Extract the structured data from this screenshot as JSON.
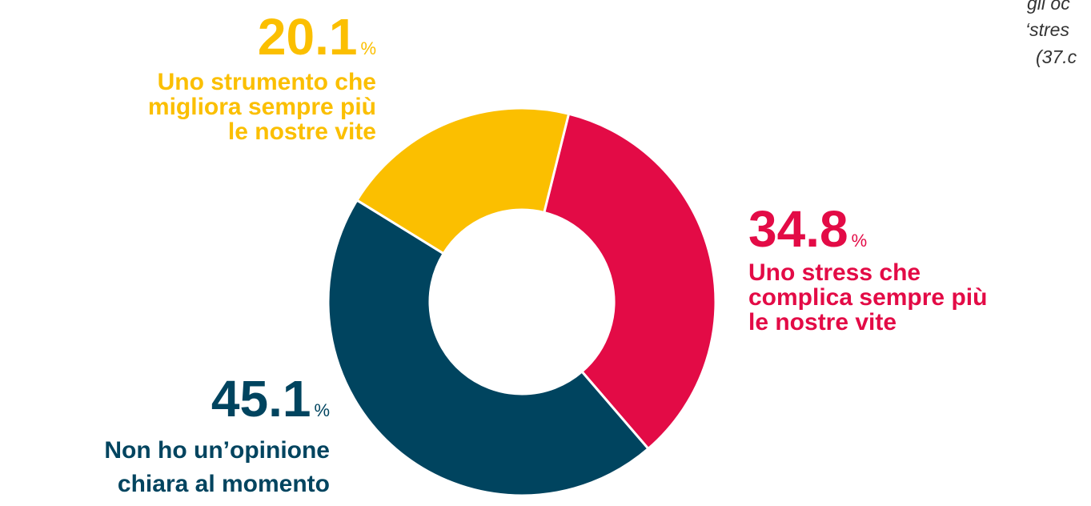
{
  "chart_data": {
    "type": "donut",
    "categories": [
      "Uno stress che\ncomplica sempre più\nle nostre vite",
      "Non ho un’opinione\nchiara al momento",
      "Uno strumento che\nmigliora sempre più\nle nostre vite"
    ],
    "values": [
      34.8,
      45.1,
      20.1
    ],
    "unit": "%",
    "colors": [
      "#e30b46",
      "#00445f",
      "#fbbf00"
    ],
    "annotation": [
      "gli oc",
      "‘stres",
      "(37.c"
    ]
  }
}
